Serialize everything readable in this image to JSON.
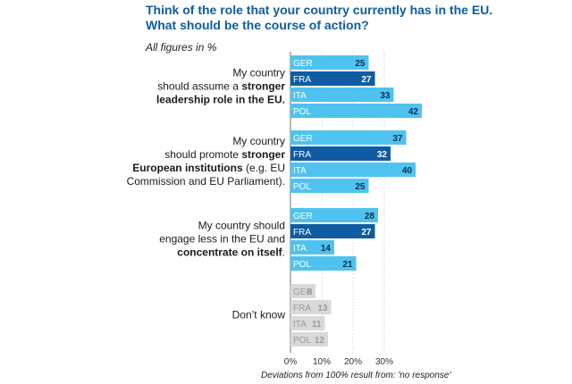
{
  "title": "Think of the role that your country currently has in the EU.",
  "title_line2": "What should be the course of action?",
  "subtitle": "All figures in %",
  "footnote": "Deviations from 100% result from: 'no response'",
  "colors": {
    "light": "#4fc3ef",
    "dark": "#0f5ca3",
    "grey": "#d9d9d9",
    "grey_text": "#9a9a9a"
  },
  "chart_data": {
    "type": "bar",
    "orientation": "horizontal",
    "categories": [
      "GER",
      "FRA",
      "ITA",
      "POL"
    ],
    "xlim": [
      0,
      40
    ],
    "ticks": [
      {
        "value": 0,
        "label": "0%"
      },
      {
        "value": 10,
        "label": "10%"
      },
      {
        "value": 20,
        "label": "20%"
      },
      {
        "value": 30,
        "label": "30%"
      }
    ],
    "groups": [
      {
        "label_lines": [
          [
            {
              "t": "My country",
              "b": false
            }
          ],
          [
            {
              "t": "should assume a ",
              "b": false
            },
            {
              "t": "stronger",
              "b": true
            }
          ],
          [
            {
              "t": "leadership role in the EU.",
              "b": true
            }
          ]
        ],
        "values": [
          25,
          27,
          33,
          42
        ],
        "style": "normal"
      },
      {
        "label_lines": [
          [
            {
              "t": "My country",
              "b": false
            }
          ],
          [
            {
              "t": "should promote ",
              "b": false
            },
            {
              "t": "stronger",
              "b": true
            }
          ],
          [
            {
              "t": "European institutions",
              "b": true
            },
            {
              "t": " (e.g. EU",
              "b": false
            }
          ],
          [
            {
              "t": "Commission and EU Parliament).",
              "b": false
            }
          ]
        ],
        "values": [
          37,
          32,
          40,
          25
        ],
        "style": "normal"
      },
      {
        "label_lines": [
          [
            {
              "t": "My country should",
              "b": false
            }
          ],
          [
            {
              "t": "engage less in the EU and",
              "b": false
            }
          ],
          [
            {
              "t": "concentrate on itself",
              "b": true
            },
            {
              "t": ".",
              "b": false
            }
          ]
        ],
        "values": [
          28,
          27,
          14,
          21
        ],
        "style": "normal"
      },
      {
        "label_lines": [
          [
            {
              "t": "Don’t know",
              "b": false
            }
          ]
        ],
        "values": [
          8,
          13,
          11,
          12
        ],
        "style": "muted"
      }
    ]
  }
}
